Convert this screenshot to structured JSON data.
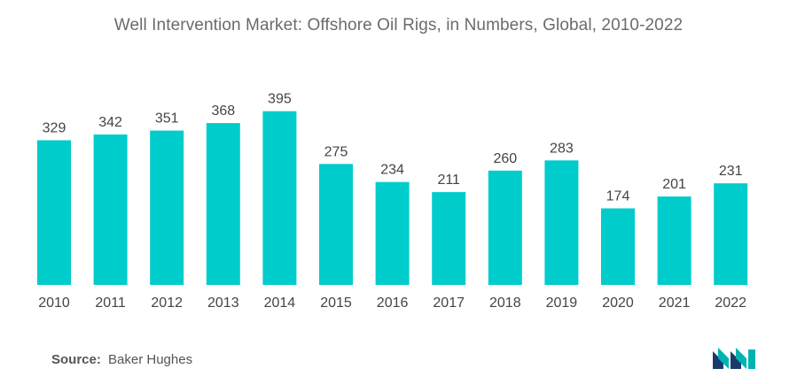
{
  "chart_data": {
    "type": "bar",
    "title": "Well Intervention Market: Offshore Oil Rigs, in Numbers, Global, 2010-2022",
    "categories": [
      "2010",
      "2011",
      "2012",
      "2013",
      "2014",
      "2015",
      "2016",
      "2017",
      "2018",
      "2019",
      "2020",
      "2021",
      "2022"
    ],
    "values": [
      329,
      342,
      351,
      368,
      395,
      275,
      234,
      211,
      260,
      283,
      174,
      201,
      231
    ],
    "xlabel": "",
    "ylabel": "",
    "ylim": [
      0,
      400
    ],
    "grid": false,
    "legend": "none",
    "bar_color": "#00cccc"
  },
  "source": {
    "label": "Source:",
    "value": "Baker Hughes"
  },
  "brand": {
    "logo_icon": "mordor-intelligence-logo-icon",
    "colors": [
      "#1b3a6b",
      "#00b3b3"
    ]
  }
}
